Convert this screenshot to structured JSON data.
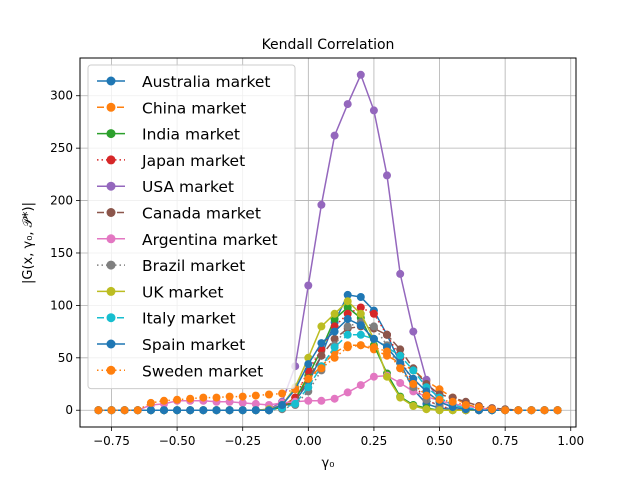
{
  "chart_data": {
    "type": "line",
    "title": "Kendall Correlation",
    "xlabel": "γ₀",
    "ylabel": "|G(x, γ₀, 𝒫*)|",
    "xlim": [
      -0.87,
      1.02
    ],
    "ylim": [
      -16,
      336
    ],
    "xticks": [
      -0.75,
      -0.5,
      -0.25,
      0.0,
      0.25,
      0.5,
      0.75,
      1.0
    ],
    "xtick_labels": [
      "−0.75",
      "−0.50",
      "−0.25",
      "0.00",
      "0.25",
      "0.50",
      "0.75",
      "1.00"
    ],
    "yticks": [
      0,
      50,
      100,
      150,
      200,
      250,
      300
    ],
    "ytick_labels": [
      "0",
      "50",
      "100",
      "150",
      "200",
      "250",
      "300"
    ],
    "grid": true,
    "legend_position": "upper-left",
    "x": [
      -0.8,
      -0.75,
      -0.7,
      -0.65,
      -0.6,
      -0.55,
      -0.5,
      -0.45,
      -0.4,
      -0.35,
      -0.3,
      -0.25,
      -0.2,
      -0.15,
      -0.1,
      -0.05,
      0.0,
      0.05,
      0.1,
      0.15,
      0.2,
      0.25,
      0.3,
      0.35,
      0.4,
      0.45,
      0.5,
      0.55,
      0.6,
      0.65,
      0.7,
      0.75,
      0.8,
      0.85,
      0.9,
      0.95
    ],
    "series": [
      {
        "name": "Australia market",
        "color": "#1f77b4",
        "dash": "",
        "values": [
          0,
          0,
          0,
          0,
          0,
          0,
          0,
          0,
          0,
          0,
          0,
          0,
          0,
          0,
          3,
          9,
          26,
          52,
          84,
          110,
          108,
          95,
          72,
          45,
          20,
          6,
          2,
          1,
          0,
          0,
          0,
          0,
          0,
          0,
          0,
          0
        ]
      },
      {
        "name": "China market",
        "color": "#ff7f0e",
        "dash": "7,3",
        "values": [
          0,
          0,
          0,
          0,
          0,
          0,
          0,
          0,
          0,
          0,
          0,
          0,
          0,
          1,
          4,
          12,
          30,
          42,
          55,
          62,
          62,
          58,
          52,
          45,
          38,
          28,
          20,
          12,
          6,
          2,
          1,
          0,
          0,
          0,
          0,
          0
        ]
      },
      {
        "name": "India market",
        "color": "#2ca02c",
        "dash": "",
        "values": [
          0,
          0,
          0,
          0,
          0,
          0,
          0,
          0,
          0,
          0,
          0,
          0,
          0,
          0,
          3,
          10,
          33,
          58,
          87,
          98,
          88,
          62,
          35,
          13,
          5,
          2,
          0,
          0,
          0,
          0,
          0,
          0,
          0,
          0,
          0,
          0
        ]
      },
      {
        "name": "Japan market",
        "color": "#d62728",
        "dash": "1.5,3",
        "values": [
          0,
          0,
          0,
          0,
          0,
          0,
          0,
          0,
          0,
          0,
          0,
          0,
          0,
          0,
          3,
          12,
          38,
          58,
          80,
          92,
          98,
          92,
          72,
          50,
          25,
          10,
          4,
          1,
          0,
          0,
          0,
          0,
          0,
          0,
          0,
          0
        ]
      },
      {
        "name": "USA market",
        "color": "#9467bd",
        "dash": "",
        "values": [
          0,
          0,
          0,
          0,
          0,
          0,
          0,
          0,
          0,
          0,
          0,
          0,
          0,
          1,
          8,
          42,
          119,
          196,
          262,
          292,
          320,
          286,
          224,
          130,
          75,
          29,
          8,
          3,
          1,
          0,
          0,
          0,
          0,
          0,
          0,
          0
        ]
      },
      {
        "name": "Canada market",
        "color": "#8c564b",
        "dash": "7,3",
        "values": [
          0,
          0,
          0,
          0,
          0,
          0,
          0,
          0,
          0,
          0,
          0,
          0,
          0,
          0,
          2,
          8,
          30,
          52,
          68,
          78,
          80,
          78,
          72,
          58,
          40,
          25,
          15,
          12,
          8,
          4,
          2,
          1,
          0,
          0,
          0,
          0
        ]
      },
      {
        "name": "Argentina market",
        "color": "#e377c2",
        "dash": "",
        "values": [
          0,
          0,
          0,
          0,
          5,
          6,
          9,
          9,
          9,
          8,
          8,
          7,
          6,
          5,
          7,
          8,
          9,
          9,
          11,
          17,
          24,
          32,
          33,
          26,
          18,
          13,
          9,
          6,
          4,
          2,
          1,
          0,
          0,
          0,
          0,
          0
        ]
      },
      {
        "name": "Brazil market",
        "color": "#7f7f7f",
        "dash": "1.5,3",
        "values": [
          0,
          0,
          0,
          0,
          0,
          0,
          0,
          0,
          0,
          0,
          0,
          0,
          0,
          0,
          1,
          5,
          18,
          38,
          62,
          80,
          84,
          80,
          62,
          40,
          22,
          10,
          4,
          1,
          0,
          0,
          0,
          0,
          0,
          0,
          0,
          0
        ]
      },
      {
        "name": "UK market",
        "color": "#bcbd22",
        "dash": "",
        "values": [
          0,
          0,
          0,
          0,
          0,
          0,
          0,
          0,
          0,
          0,
          0,
          0,
          0,
          1,
          5,
          22,
          50,
          80,
          92,
          104,
          92,
          68,
          32,
          12,
          4,
          1,
          0,
          0,
          0,
          0,
          0,
          0,
          0,
          0,
          0,
          0
        ]
      },
      {
        "name": "Italy market",
        "color": "#17becf",
        "dash": "7,3",
        "values": [
          0,
          0,
          0,
          0,
          0,
          0,
          0,
          0,
          0,
          0,
          0,
          0,
          0,
          0,
          2,
          6,
          22,
          42,
          60,
          72,
          72,
          68,
          60,
          52,
          38,
          22,
          12,
          5,
          2,
          1,
          0,
          0,
          0,
          0,
          0,
          0
        ]
      },
      {
        "name": "Spain market",
        "color": "#1f77b4",
        "dash": "",
        "values": [
          0,
          0,
          0,
          0,
          0,
          0,
          0,
          0,
          0,
          0,
          0,
          0,
          0,
          0,
          5,
          20,
          44,
          64,
          75,
          87,
          81,
          68,
          60,
          45,
          30,
          18,
          8,
          3,
          1,
          0,
          0,
          0,
          0,
          0,
          0,
          0
        ]
      },
      {
        "name": "Sweden market",
        "color": "#ff7f0e",
        "dash": "1.5,3",
        "values": [
          0,
          0,
          0,
          0,
          7,
          9,
          10,
          11,
          12,
          12,
          13,
          13,
          14,
          15,
          16,
          20,
          30,
          40,
          50,
          60,
          62,
          60,
          56,
          40,
          25,
          14,
          10,
          8,
          5,
          3,
          1,
          0,
          0,
          0,
          0,
          0
        ]
      }
    ]
  }
}
